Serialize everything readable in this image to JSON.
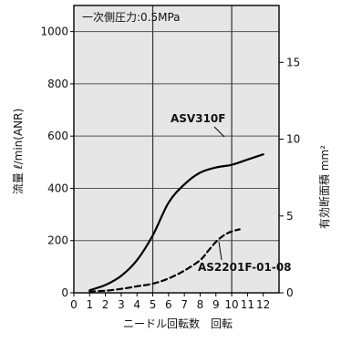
{
  "chart_data": {
    "type": "line",
    "annotation": "一次側圧力:0.5MPa",
    "xlabel": "ニードル回転数　回転",
    "ylabel": "流量 ℓ/min(ANR)",
    "y2label": "有効断面積 mm²",
    "xlim": [
      0,
      13
    ],
    "ylim": [
      0,
      1100
    ],
    "y2lim": [
      0,
      18.7
    ],
    "x_ticks": [
      "0",
      "1",
      "2",
      "3",
      "4",
      "5",
      "6",
      "7",
      "8",
      "9",
      "10",
      "11",
      "12"
    ],
    "y_ticks": [
      "0",
      "200",
      "400",
      "600",
      "800",
      "1000"
    ],
    "y2_ticks": [
      "0",
      "5",
      "10",
      "15"
    ],
    "grid": true,
    "series": [
      {
        "name": "ASV310F",
        "style": "solid",
        "color": "#000000",
        "x": [
          1,
          2,
          3,
          4,
          5,
          6,
          7,
          8,
          9,
          10,
          11,
          12
        ],
        "y": [
          10,
          30,
          65,
          125,
          220,
          345,
          415,
          460,
          480,
          490,
          510,
          530
        ]
      },
      {
        "name": "AS2201F-01-08",
        "style": "dashed",
        "color": "#000000",
        "x": [
          1,
          2,
          3,
          4,
          5,
          6,
          7,
          8,
          8.5,
          9,
          9.5,
          10,
          10.5
        ],
        "y": [
          5,
          8,
          15,
          25,
          35,
          55,
          85,
          125,
          160,
          195,
          220,
          235,
          243
        ]
      }
    ]
  }
}
